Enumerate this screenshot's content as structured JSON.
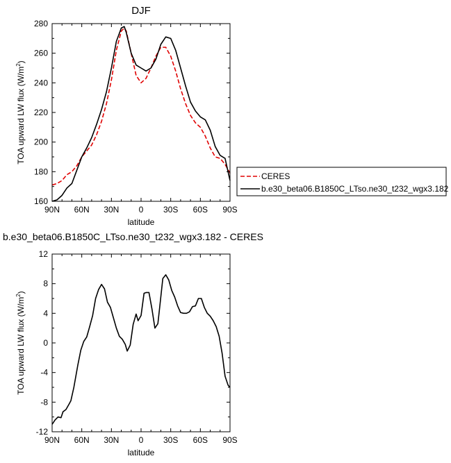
{
  "chart_data": [
    {
      "type": "line",
      "title": "DJF",
      "xlabel": "latitude",
      "ylabel": "TOA upward LW flux (W/m",
      "ylabel_sup": "2",
      "ylabel_end": ")",
      "xlim": [
        90,
        -90
      ],
      "ylim": [
        160,
        280
      ],
      "xticks": [
        90,
        60,
        30,
        0,
        -30,
        -60,
        -90
      ],
      "xtick_labels": [
        "90N",
        "60N",
        "30N",
        "0",
        "30S",
        "60S",
        "90S"
      ],
      "yticks": [
        160,
        180,
        200,
        220,
        240,
        260,
        280
      ],
      "ytick_labels": [
        "160",
        "180",
        "200",
        "220",
        "240",
        "260",
        "280"
      ],
      "legend_position": "right",
      "series": [
        {
          "name": "CERES",
          "color": "#e00000",
          "dash": true,
          "x": [
            90,
            85,
            80,
            75,
            70,
            65,
            60,
            55,
            50,
            45,
            40,
            35,
            30,
            25,
            20,
            17,
            15,
            10,
            5,
            0,
            -5,
            -10,
            -15,
            -20,
            -25,
            -30,
            -35,
            -40,
            -45,
            -50,
            -55,
            -60,
            -65,
            -70,
            -75,
            -80,
            -85,
            -90
          ],
          "y": [
            171,
            172,
            174,
            178,
            180,
            184,
            190,
            194,
            198,
            205,
            214,
            226,
            242,
            262,
            275,
            277,
            275,
            260,
            245,
            240,
            243,
            250,
            258,
            264,
            264,
            258,
            248,
            236,
            226,
            218,
            213,
            210,
            204,
            196,
            190,
            189,
            185,
            179
          ]
        },
        {
          "name": "b.e30_beta06.B1850C_LTso.ne30_t232_wgx3.182",
          "color": "#000000",
          "dash": false,
          "x": [
            90,
            85,
            80,
            75,
            70,
            65,
            60,
            55,
            50,
            45,
            40,
            35,
            30,
            25,
            20,
            17,
            15,
            10,
            5,
            0,
            -5,
            -10,
            -15,
            -20,
            -25,
            -30,
            -35,
            -40,
            -45,
            -50,
            -55,
            -60,
            -65,
            -70,
            -75,
            -80,
            -85,
            -90
          ],
          "y": [
            160,
            161,
            164,
            169,
            172,
            181,
            190,
            196,
            203,
            212,
            222,
            234,
            250,
            268,
            277,
            278,
            274,
            260,
            252,
            250,
            248,
            250,
            256,
            266,
            271,
            270,
            262,
            250,
            238,
            227,
            221,
            217,
            215,
            208,
            197,
            191,
            189,
            174
          ]
        }
      ]
    },
    {
      "type": "line",
      "title": "b.e30_beta06.B1850C_LTso.ne30_t232_wgx3.182 - CERES",
      "xlabel": "latitude",
      "ylabel": "TOA upward LW flux (W/m",
      "ylabel_sup": "2",
      "ylabel_end": ")",
      "xlim": [
        90,
        -90
      ],
      "ylim": [
        -12,
        12
      ],
      "xticks": [
        90,
        60,
        30,
        0,
        -30,
        -60,
        -90
      ],
      "xtick_labels": [
        "90N",
        "60N",
        "30N",
        "0",
        "30S",
        "60S",
        "90S"
      ],
      "yticks": [
        -12,
        -8,
        -4,
        0,
        4,
        8,
        12
      ],
      "ytick_labels": [
        "-12",
        "-8",
        "-4",
        "0",
        "4",
        "8",
        "12"
      ],
      "series": [
        {
          "color": "#000000",
          "dash": false,
          "x": [
            90,
            87,
            84,
            81,
            79,
            76,
            73,
            71,
            68,
            64,
            61,
            58,
            55,
            52,
            49,
            46,
            43,
            40,
            37,
            34,
            31,
            28,
            25,
            22,
            19,
            16,
            14,
            11,
            8,
            5,
            3,
            0,
            -3,
            -5,
            -8,
            -11,
            -14,
            -17,
            -19,
            -22,
            -25,
            -28,
            -31,
            -34,
            -37,
            -40,
            -43,
            -46,
            -49,
            -52,
            -55,
            -58,
            -61,
            -64,
            -67,
            -70,
            -73,
            -76,
            -79,
            -82,
            -85,
            -88,
            -90
          ],
          "y": [
            -11,
            -10.4,
            -10.0,
            -10.1,
            -9.3,
            -9.0,
            -8.3,
            -7.8,
            -6.0,
            -3.0,
            -1.0,
            0.2,
            0.8,
            2.2,
            3.7,
            6.0,
            7.2,
            7.9,
            7.3,
            5.5,
            4.8,
            3.4,
            2.0,
            0.9,
            0.5,
            -0.2,
            -1.1,
            -0.3,
            2.5,
            3.9,
            3.0,
            3.7,
            6.7,
            6.8,
            6.8,
            4.6,
            2.0,
            2.6,
            5.0,
            8.7,
            9.2,
            8.5,
            7.1,
            6.2,
            5.0,
            4.1,
            4.0,
            4.0,
            4.2,
            4.9,
            5.0,
            6.0,
            6.0,
            4.8,
            4.0,
            3.6,
            3.0,
            2.2,
            0.9,
            -1.4,
            -4.5,
            -5.7,
            -6.0
          ]
        }
      ]
    }
  ]
}
